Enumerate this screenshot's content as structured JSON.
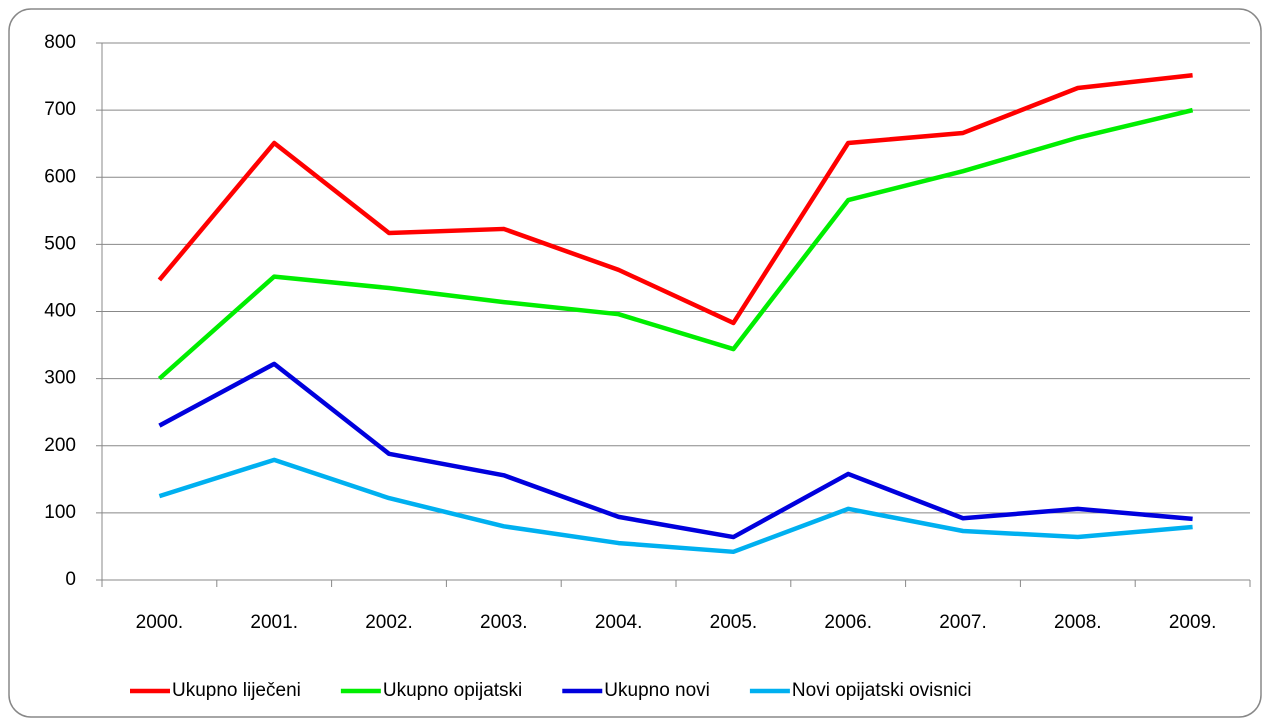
{
  "chart_data": {
    "type": "line",
    "categories": [
      "2000.",
      "2001.",
      "2002.",
      "2003.",
      "2004.",
      "2005.",
      "2006.",
      "2007.",
      "2008.",
      "2009."
    ],
    "series": [
      {
        "name": "Ukupno liječeni",
        "color": "#ff0000",
        "values": [
          447,
          651,
          517,
          523,
          462,
          383,
          651,
          666,
          733,
          752
        ]
      },
      {
        "name": "Ukupno opijatski",
        "color": "#00ee00",
        "values": [
          300,
          452,
          435,
          414,
          396,
          344,
          566,
          609,
          659,
          700
        ]
      },
      {
        "name": "Ukupno novi",
        "color": "#0000dd",
        "values": [
          230,
          322,
          188,
          156,
          94,
          64,
          158,
          92,
          106,
          91
        ]
      },
      {
        "name": "Novi opijatski ovisnici",
        "color": "#00b0f0",
        "values": [
          125,
          179,
          122,
          80,
          55,
          42,
          106,
          73,
          64,
          79
        ]
      }
    ],
    "ylim": [
      0,
      800
    ],
    "yticks": [
      0,
      100,
      200,
      300,
      400,
      500,
      600,
      700,
      800
    ],
    "grid": true,
    "legend": "bottom"
  }
}
